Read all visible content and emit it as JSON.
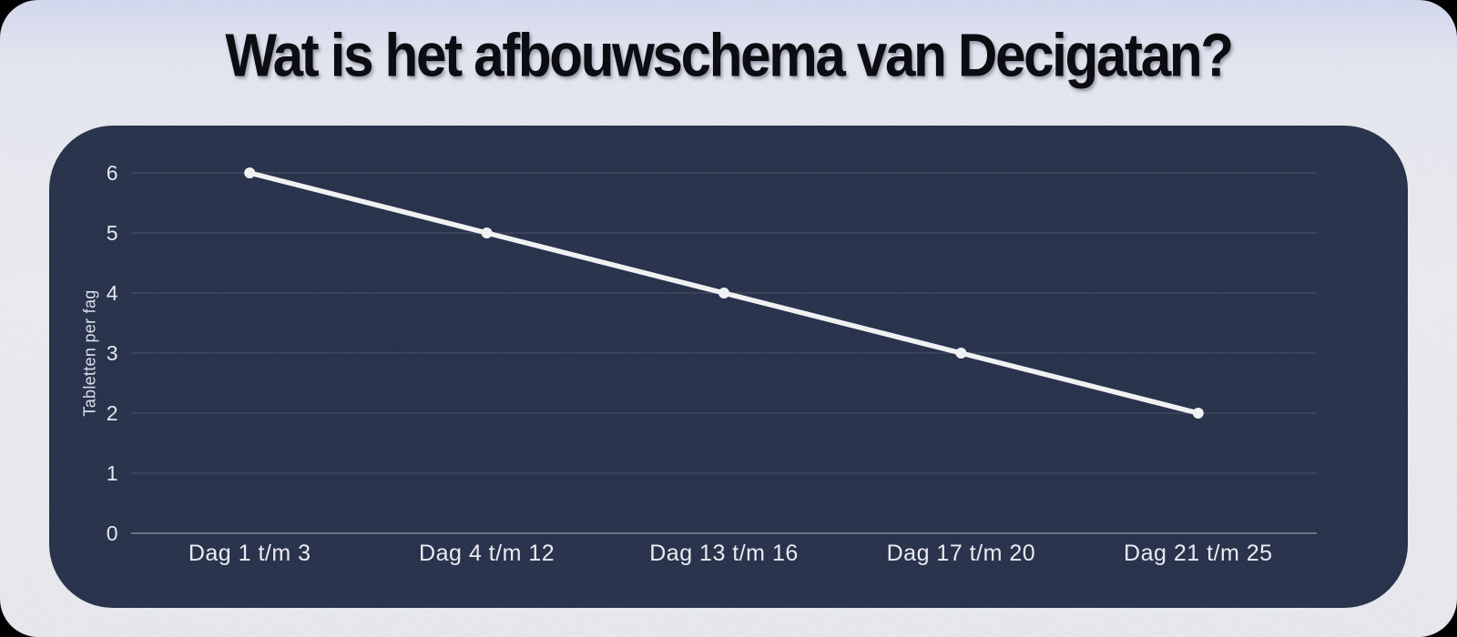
{
  "page": {
    "title": "Wat is het afbouwschema van Decigatan?",
    "colors": {
      "behind_page": "#000000",
      "background_top": "#d6dbf1",
      "background": "#ecedf2",
      "title_text": "#0c0d12"
    }
  },
  "chart_data": {
    "type": "line",
    "title": "Wat is het afbouwschema van Decigatan?",
    "categories": [
      "Dag 1 t/m 3",
      "Dag 4 t/m 12",
      "Dag 13 t/m 16",
      "Dag 17 t/m 20",
      "Dag 21 t/m 25"
    ],
    "values": [
      6,
      5,
      4,
      3,
      2
    ],
    "xlabel": "",
    "ylabel": "Tabletten per fag",
    "yticks": [
      0,
      1,
      2,
      3,
      4,
      5,
      6
    ],
    "ylim": [
      0,
      6
    ],
    "grid": true,
    "legend": false,
    "marker": "circle",
    "colors": {
      "panel_bg": "#2a344d",
      "line": "#f4f5f7",
      "marker_fill": "#f4f5f7",
      "grid_line": "rgba(255,255,255,0.16)",
      "axis_line": "rgba(255,255,255,0.42)",
      "tick_label": "#e9ecf2",
      "category_label": "#eef0f5",
      "y_axis_title": "#dde2ea"
    }
  }
}
